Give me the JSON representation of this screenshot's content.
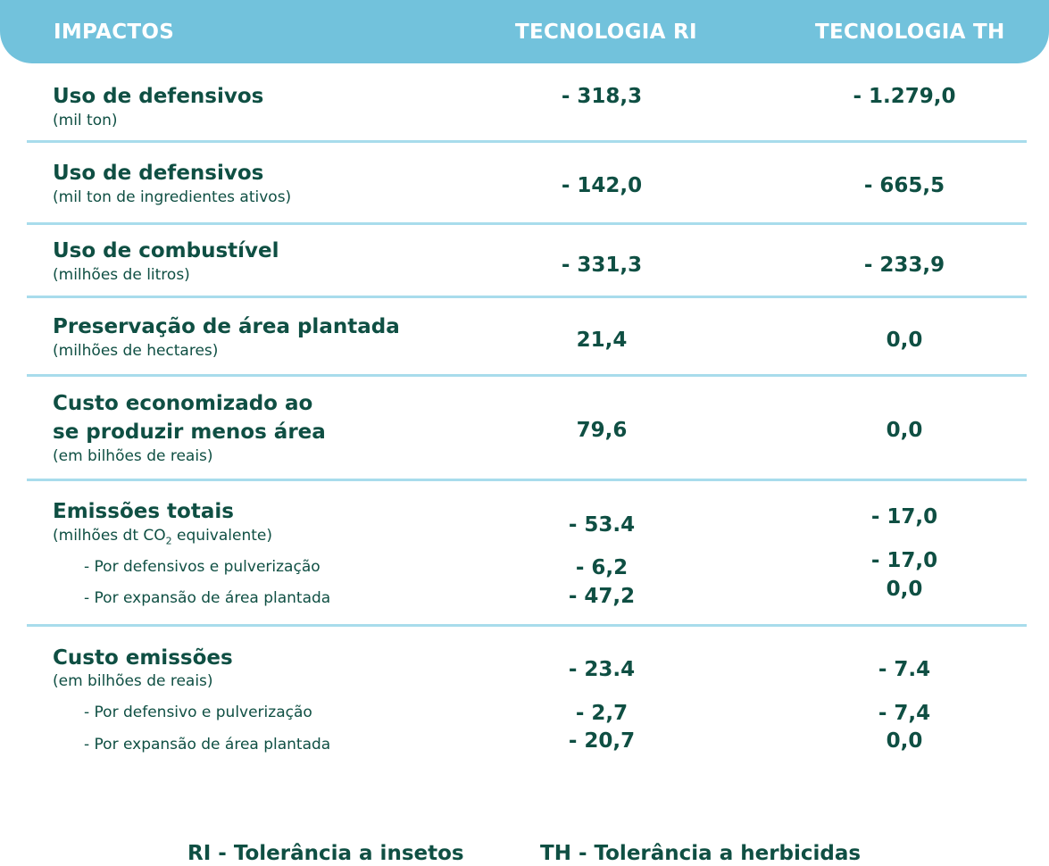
{
  "header": {
    "impactos": "IMPACTOS",
    "ri": "TECNOLOGIA RI",
    "th": "TECNOLOGIA TH"
  },
  "rows": [
    {
      "title": "Uso de defensivos",
      "unit": "(mil ton)",
      "ri": "- 318,3",
      "th": "- 1.279,0"
    },
    {
      "title": "Uso de defensivos",
      "unit": "(mil ton de ingredientes ativos)",
      "ri": "- 142,0",
      "th": "- 665,5"
    },
    {
      "title": "Uso de combustível",
      "unit": "(milhões de litros)",
      "ri": "- 331,3",
      "th": "- 233,9"
    },
    {
      "title": "Preservação de área plantada",
      "unit": "(milhões de hectares)",
      "ri": "21,4",
      "th": "0,0"
    },
    {
      "title_line1": "Custo economizado ao",
      "title_line2": "se produzir menos área",
      "unit": "(em bilhões de reais)",
      "ri": "79,6",
      "th": "0,0"
    },
    {
      "title": "Emissões totais",
      "unit_prefix": "(milhões dt CO",
      "unit_subscript": "2",
      "unit_suffix": " equivalente)",
      "ri": "- 53.4",
      "th": "- 17,0",
      "sub1": {
        "label": "- Por defensivos e pulverização",
        "ri": "- 6,2",
        "th": "- 17,0"
      },
      "sub2": {
        "label": "- Por expansão de área plantada",
        "ri": "- 47,2",
        "th": "0,0"
      }
    },
    {
      "title": "Custo  emissões",
      "unit": "(em bilhões de reais)",
      "ri": "- 23.4",
      "th": "- 7.4",
      "sub1": {
        "label": "- Por defensivo e pulverização",
        "ri": "- 2,7",
        "th": "- 7,4"
      },
      "sub2": {
        "label": "- Por expansão de área plantada",
        "ri": "- 20,7",
        "th": "0,0"
      }
    }
  ],
  "legend": {
    "ri": "RI - Tolerância a insetos",
    "th": "TH - Tolerância a herbicidas"
  }
}
